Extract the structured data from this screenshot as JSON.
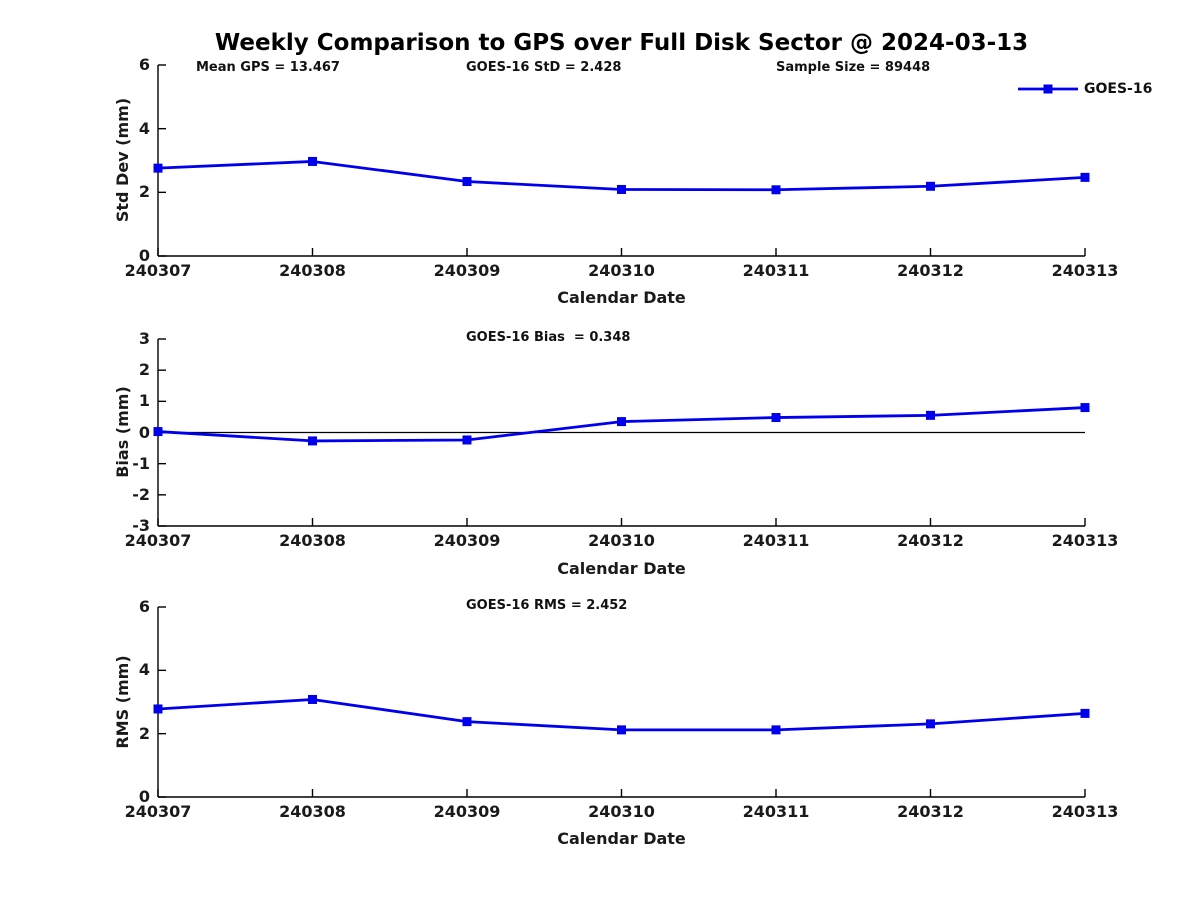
{
  "title": "Weekly Comparison to GPS over Full Disk Sector @ 2024-03-13",
  "legend": {
    "label": "GOES-16"
  },
  "colors": {
    "line": "#0000EE",
    "marker": "#0000EE",
    "axis": "#000000",
    "zero_line": "#000000",
    "text": "#111111"
  },
  "chart_data": [
    {
      "type": "line",
      "name": "std-dev",
      "categories": [
        "240307",
        "240308",
        "240309",
        "240310",
        "240311",
        "240312",
        "240313"
      ],
      "series": [
        {
          "name": "GOES-16",
          "values": [
            2.76,
            2.97,
            2.34,
            2.09,
            2.08,
            2.19,
            2.47
          ]
        }
      ],
      "xlabel": "Calendar Date",
      "ylabel": "Std Dev (mm)",
      "ylim": [
        0,
        6
      ],
      "yticks": [
        0,
        2,
        4,
        6
      ],
      "grid": false,
      "legend_position": "top-right",
      "marker": "square",
      "annotations": {
        "mean_gps": "Mean GPS = 13.467",
        "std": "GOES-16 StD = 2.428",
        "sample_size": "Sample Size = 89448"
      }
    },
    {
      "type": "line",
      "name": "bias",
      "categories": [
        "240307",
        "240308",
        "240309",
        "240310",
        "240311",
        "240312",
        "240313"
      ],
      "series": [
        {
          "name": "GOES-16",
          "values": [
            0.03,
            -0.27,
            -0.24,
            0.35,
            0.48,
            0.55,
            0.8
          ]
        }
      ],
      "xlabel": "Calendar Date",
      "ylabel": "Bias (mm)",
      "ylim": [
        -3,
        3
      ],
      "yticks": [
        -3,
        -2,
        -1,
        0,
        1,
        2,
        3
      ],
      "grid": false,
      "zero_line": true,
      "marker": "square",
      "annotation": "GOES-16 Bias  = 0.348"
    },
    {
      "type": "line",
      "name": "rms",
      "categories": [
        "240307",
        "240308",
        "240309",
        "240310",
        "240311",
        "240312",
        "240313"
      ],
      "series": [
        {
          "name": "GOES-16",
          "values": [
            2.78,
            3.08,
            2.38,
            2.12,
            2.12,
            2.31,
            2.64
          ]
        }
      ],
      "xlabel": "Calendar Date",
      "ylabel": "RMS (mm)",
      "ylim": [
        0,
        6
      ],
      "yticks": [
        0,
        2,
        4,
        6
      ],
      "grid": false,
      "marker": "square",
      "annotation": "GOES-16 RMS = 2.452"
    }
  ]
}
